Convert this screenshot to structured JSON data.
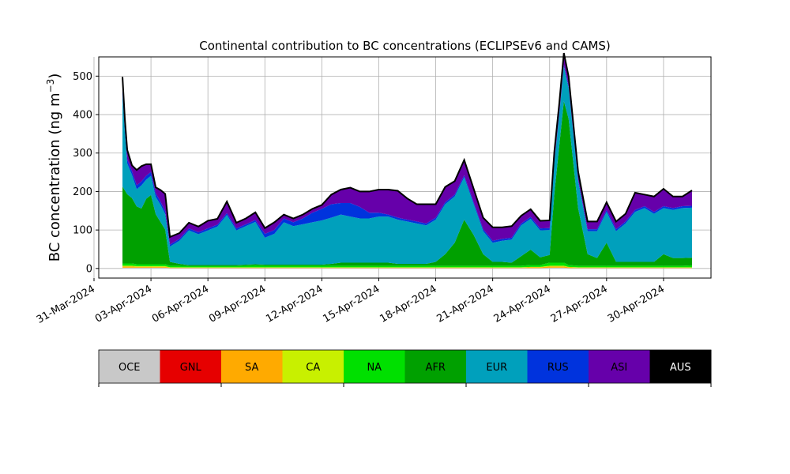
{
  "chart_data": {
    "type": "area",
    "title": "Continental contribution to BC concentrations (ECLIPSEv6 and CAMS)",
    "xlabel": "",
    "ylabel": "BC concentration (ng m",
    "ylabel_superscript": "−3",
    "ylabel_close": ")",
    "stacked": true,
    "grid": true,
    "ylim": [
      -25,
      550
    ],
    "yticks": [
      0,
      100,
      200,
      300,
      400,
      500
    ],
    "xlim": [
      "2024-03-31T06:00",
      "2024-05-02T12:00"
    ],
    "xticks": [
      "2024-03-31",
      "2024-04-03",
      "2024-04-06",
      "2024-04-09",
      "2024-04-12",
      "2024-04-15",
      "2024-04-18",
      "2024-04-21",
      "2024-04-24",
      "2024-04-27",
      "2024-04-30"
    ],
    "xtick_labels": [
      "31-Mar-2024",
      "03-Apr-2024",
      "06-Apr-2024",
      "09-Apr-2024",
      "12-Apr-2024",
      "15-Apr-2024",
      "18-Apr-2024",
      "21-Apr-2024",
      "24-Apr-2024",
      "27-Apr-2024",
      "30-Apr-2024"
    ],
    "x": [
      "2024-04-01T12:00",
      "2024-04-01T15:00",
      "2024-04-01T18:00",
      "2024-04-02T00:00",
      "2024-04-02T06:00",
      "2024-04-02T12:00",
      "2024-04-02T18:00",
      "2024-04-03T00:00",
      "2024-04-03T06:00",
      "2024-04-03T12:00",
      "2024-04-03T18:00",
      "2024-04-04T00:00",
      "2024-04-04T12:00",
      "2024-04-05T00:00",
      "2024-04-05T12:00",
      "2024-04-06T00:00",
      "2024-04-06T12:00",
      "2024-04-07T00:00",
      "2024-04-07T12:00",
      "2024-04-08T00:00",
      "2024-04-08T12:00",
      "2024-04-09T00:00",
      "2024-04-09T12:00",
      "2024-04-10T00:00",
      "2024-04-10T12:00",
      "2024-04-11T00:00",
      "2024-04-11T12:00",
      "2024-04-12T00:00",
      "2024-04-12T12:00",
      "2024-04-13T00:00",
      "2024-04-13T12:00",
      "2024-04-14T00:00",
      "2024-04-14T12:00",
      "2024-04-15T00:00",
      "2024-04-15T12:00",
      "2024-04-16T00:00",
      "2024-04-16T12:00",
      "2024-04-17T00:00",
      "2024-04-17T12:00",
      "2024-04-18T00:00",
      "2024-04-18T12:00",
      "2024-04-19T00:00",
      "2024-04-19T12:00",
      "2024-04-20T00:00",
      "2024-04-20T12:00",
      "2024-04-21T00:00",
      "2024-04-21T12:00",
      "2024-04-22T00:00",
      "2024-04-22T12:00",
      "2024-04-23T00:00",
      "2024-04-23T12:00",
      "2024-04-24T00:00",
      "2024-04-24T06:00",
      "2024-04-24T12:00",
      "2024-04-24T18:00",
      "2024-04-25T00:00",
      "2024-04-25T12:00",
      "2024-04-26T00:00",
      "2024-04-26T12:00",
      "2024-04-27T00:00",
      "2024-04-27T12:00",
      "2024-04-28T00:00",
      "2024-04-28T12:00",
      "2024-04-29T00:00",
      "2024-04-29T12:00",
      "2024-04-30T00:00",
      "2024-04-30T12:00",
      "2024-05-01T00:00",
      "2024-05-01T12:00"
    ],
    "series": [
      {
        "name": "OCE",
        "color": "#c8c8c8",
        "values": [
          2,
          2,
          2,
          2,
          2,
          2,
          2,
          2,
          2,
          2,
          2,
          1,
          1,
          1,
          1,
          1,
          1,
          1,
          1,
          1,
          1,
          1,
          1,
          1,
          1,
          1,
          1,
          1,
          1,
          1,
          1,
          1,
          1,
          1,
          1,
          1,
          1,
          1,
          1,
          1,
          1,
          1,
          1,
          1,
          1,
          1,
          1,
          1,
          1,
          1,
          1,
          2,
          2,
          2,
          2,
          1,
          1,
          1,
          1,
          1,
          1,
          1,
          1,
          1,
          1,
          1,
          1,
          1,
          1
        ]
      },
      {
        "name": "GNL",
        "color": "#e60000",
        "values": [
          0,
          0,
          0,
          0,
          0,
          0,
          0,
          0,
          0,
          0,
          0,
          0,
          0,
          0,
          0,
          0,
          0,
          0,
          0,
          0,
          0,
          0,
          0,
          0,
          0,
          0,
          0,
          0,
          0,
          0,
          0,
          0,
          0,
          0,
          0,
          0,
          0,
          0,
          0,
          0,
          0,
          0,
          0,
          0,
          0,
          0,
          0,
          0,
          0,
          0,
          0,
          0,
          0,
          0,
          0,
          0,
          0,
          0,
          0,
          0,
          0,
          0,
          0,
          0,
          0,
          0,
          0,
          0,
          0
        ]
      },
      {
        "name": "SA",
        "color": "#ffaa00",
        "values": [
          3,
          3,
          3,
          3,
          2,
          2,
          2,
          2,
          2,
          2,
          2,
          1,
          1,
          1,
          1,
          1,
          1,
          1,
          1,
          1,
          1,
          1,
          1,
          1,
          1,
          1,
          1,
          1,
          1,
          1,
          1,
          1,
          1,
          1,
          1,
          1,
          1,
          1,
          1,
          1,
          1,
          1,
          1,
          1,
          1,
          1,
          1,
          1,
          1,
          2,
          2,
          3,
          3,
          3,
          3,
          2,
          1,
          1,
          1,
          1,
          1,
          1,
          1,
          1,
          1,
          1,
          1,
          1,
          1
        ]
      },
      {
        "name": "CA",
        "color": "#c8f000",
        "values": [
          2,
          2,
          2,
          2,
          2,
          2,
          2,
          2,
          2,
          2,
          2,
          1,
          1,
          1,
          1,
          1,
          1,
          1,
          1,
          1,
          1,
          1,
          1,
          1,
          1,
          1,
          1,
          1,
          1,
          1,
          1,
          1,
          1,
          1,
          1,
          1,
          1,
          1,
          1,
          1,
          1,
          1,
          1,
          1,
          1,
          1,
          1,
          1,
          1,
          1,
          1,
          2,
          2,
          2,
          2,
          1,
          1,
          1,
          1,
          1,
          1,
          1,
          1,
          1,
          1,
          1,
          1,
          1,
          1
        ]
      },
      {
        "name": "NA",
        "color": "#00e000",
        "values": [
          6,
          6,
          6,
          6,
          5,
          5,
          5,
          5,
          5,
          5,
          5,
          4,
          4,
          3,
          3,
          3,
          3,
          3,
          3,
          4,
          5,
          4,
          4,
          4,
          4,
          4,
          4,
          4,
          4,
          4,
          4,
          4,
          4,
          4,
          4,
          4,
          4,
          4,
          4,
          4,
          4,
          4,
          4,
          4,
          4,
          4,
          4,
          4,
          4,
          5,
          5,
          8,
          8,
          8,
          8,
          5,
          4,
          4,
          4,
          4,
          4,
          4,
          4,
          4,
          4,
          4,
          4,
          4,
          5
        ]
      },
      {
        "name": "AFR",
        "color": "#00a000",
        "values": [
          200,
          190,
          180,
          170,
          150,
          145,
          170,
          180,
          130,
          110,
          90,
          10,
          5,
          3,
          3,
          3,
          3,
          3,
          3,
          3,
          3,
          3,
          3,
          3,
          3,
          3,
          3,
          3,
          5,
          8,
          8,
          8,
          8,
          8,
          8,
          5,
          5,
          5,
          5,
          10,
          30,
          60,
          120,
          80,
          30,
          10,
          10,
          8,
          25,
          40,
          20,
          20,
          180,
          300,
          420,
          380,
          150,
          30,
          20,
          60,
          10,
          10,
          10,
          10,
          10,
          30,
          20,
          20,
          20
        ]
      },
      {
        "name": "EUR",
        "color": "#00a0bc",
        "values": [
          240,
          150,
          80,
          60,
          45,
          60,
          50,
          50,
          45,
          45,
          40,
          40,
          60,
          90,
          80,
          90,
          100,
          130,
          90,
          100,
          110,
          70,
          80,
          110,
          100,
          105,
          110,
          115,
          120,
          125,
          120,
          115,
          115,
          120,
          120,
          115,
          110,
          105,
          100,
          110,
          130,
          120,
          110,
          80,
          60,
          50,
          55,
          60,
          80,
          80,
          70,
          65,
          80,
          80,
          90,
          80,
          70,
          60,
          70,
          80,
          80,
          100,
          130,
          140,
          125,
          120,
          125,
          130,
          130
        ]
      },
      {
        "name": "RUS",
        "color": "#0033dd",
        "values": [
          20,
          15,
          10,
          10,
          10,
          10,
          10,
          10,
          10,
          8,
          8,
          5,
          5,
          5,
          5,
          5,
          5,
          5,
          5,
          5,
          5,
          10,
          10,
          10,
          10,
          15,
          25,
          30,
          35,
          30,
          35,
          30,
          15,
          10,
          5,
          5,
          5,
          5,
          5,
          5,
          5,
          5,
          5,
          5,
          5,
          5,
          5,
          5,
          5,
          5,
          5,
          5,
          5,
          5,
          5,
          5,
          5,
          5,
          5,
          5,
          5,
          5,
          5,
          5,
          5,
          5,
          5,
          5,
          5
        ]
      },
      {
        "name": "ASI",
        "color": "#6600aa",
        "values": [
          25,
          20,
          25,
          15,
          40,
          40,
          30,
          20,
          15,
          30,
          45,
          20,
          15,
          15,
          15,
          20,
          15,
          30,
          15,
          15,
          20,
          15,
          20,
          10,
          10,
          10,
          10,
          10,
          25,
          35,
          40,
          40,
          55,
          60,
          65,
          70,
          55,
          45,
          50,
          35,
          40,
          35,
          40,
          35,
          30,
          35,
          30,
          30,
          20,
          20,
          20,
          20,
          25,
          25,
          30,
          25,
          20,
          20,
          20,
          20,
          20,
          20,
          45,
          30,
          40,
          45,
          30,
          25,
          40
        ]
      },
      {
        "name": "AUS",
        "color": "#000000",
        "values": [
          0,
          0,
          0,
          0,
          0,
          0,
          0,
          0,
          0,
          0,
          0,
          0,
          0,
          0,
          0,
          0,
          0,
          0,
          0,
          0,
          0,
          0,
          0,
          0,
          0,
          0,
          0,
          0,
          0,
          0,
          0,
          0,
          0,
          0,
          0,
          0,
          0,
          0,
          0,
          0,
          0,
          0,
          0,
          0,
          0,
          0,
          0,
          0,
          0,
          0,
          0,
          0,
          0,
          0,
          0,
          0,
          0,
          0,
          0,
          0,
          0,
          0,
          0,
          0,
          0,
          0,
          0,
          0,
          0
        ]
      }
    ],
    "legend": {
      "placement": "bottom",
      "entries": [
        {
          "label": "OCE",
          "color": "#c8c8c8",
          "text_color": "#000000"
        },
        {
          "label": "GNL",
          "color": "#e60000",
          "text_color": "#000000"
        },
        {
          "label": "SA",
          "color": "#ffaa00",
          "text_color": "#000000"
        },
        {
          "label": "CA",
          "color": "#c8f000",
          "text_color": "#000000"
        },
        {
          "label": "NA",
          "color": "#00e000",
          "text_color": "#000000"
        },
        {
          "label": "AFR",
          "color": "#00a000",
          "text_color": "#000000"
        },
        {
          "label": "EUR",
          "color": "#00a0bc",
          "text_color": "#000000"
        },
        {
          "label": "RUS",
          "color": "#0033dd",
          "text_color": "#000000"
        },
        {
          "label": "ASI",
          "color": "#6600aa",
          "text_color": "#000000"
        },
        {
          "label": "AUS",
          "color": "#000000",
          "text_color": "#ffffff"
        }
      ]
    }
  }
}
